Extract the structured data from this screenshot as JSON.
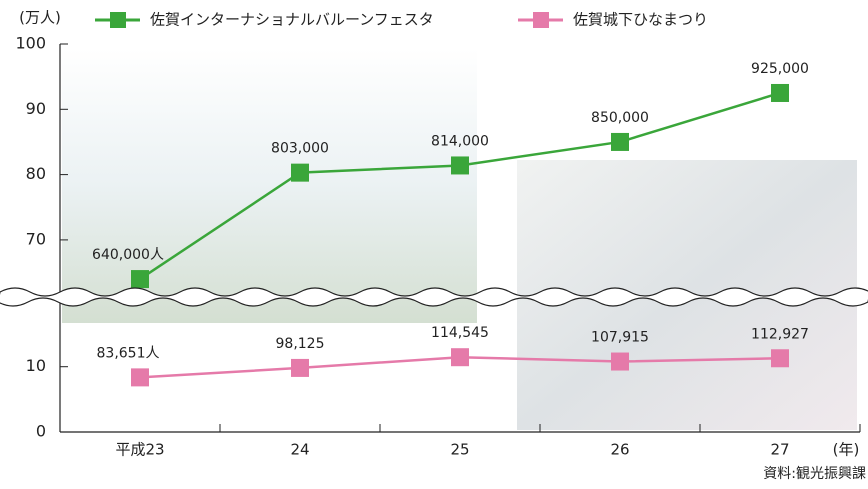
{
  "chart_data": {
    "type": "line",
    "y_unit_label": "(万人)",
    "x_unit_label": "(年)",
    "source": "資料:観光振興課",
    "categories": [
      "平成23",
      "24",
      "25",
      "26",
      "27"
    ],
    "series": [
      {
        "name": "佐賀インターナショナルバルーンフェスタ",
        "color": "#3aa63a",
        "values": [
          64,
          80.3,
          81.4,
          85,
          92.5
        ],
        "value_labels": [
          "640,000人",
          "803,000",
          "814,000",
          "850,000",
          "925,000"
        ]
      },
      {
        "name": "佐賀城下ひなまつり",
        "color": "#e57aa9",
        "values": [
          8.3651,
          9.8125,
          11.4545,
          10.7915,
          11.2927
        ],
        "value_labels": [
          "83,651人",
          "98,125",
          "114,545",
          "107,915",
          "112,927"
        ]
      }
    ],
    "ylim": [
      0,
      100
    ],
    "ybreak": [
      21,
      61
    ],
    "yticks": [
      0,
      10,
      70,
      80,
      90,
      100
    ]
  }
}
